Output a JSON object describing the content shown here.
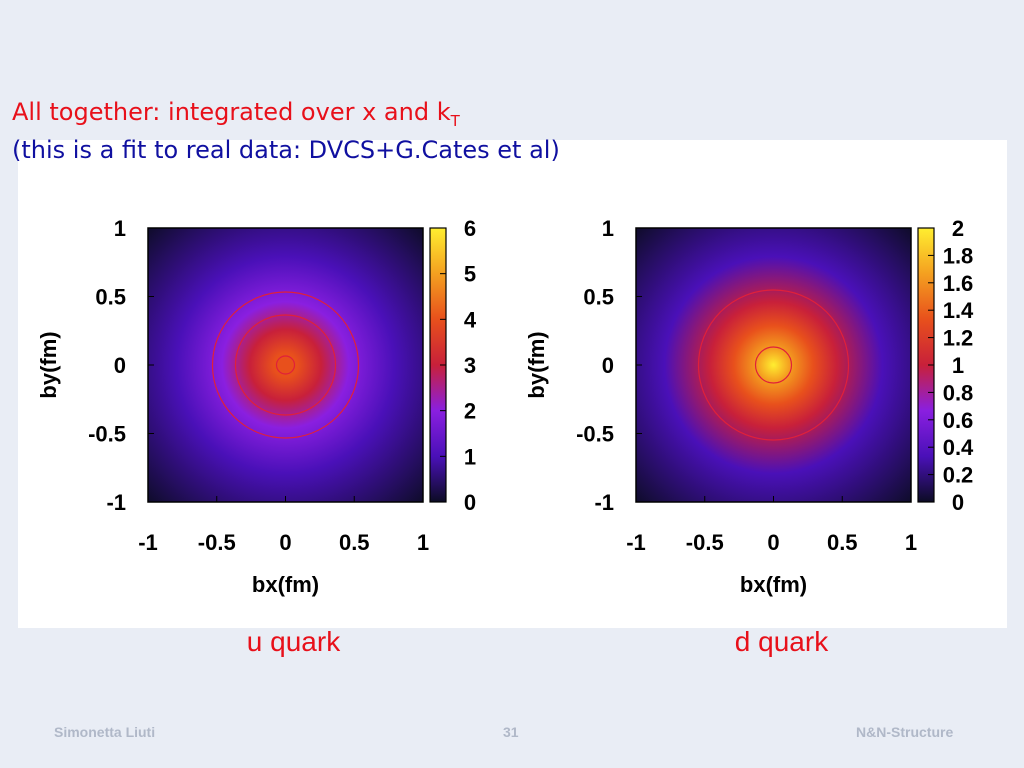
{
  "heading": {
    "line1": "All together: integrated over x and k",
    "line1_subscript": "T",
    "line2": "(this is a fit to real data: DVCS+G.Cates et al)"
  },
  "chart_data": [
    {
      "type": "heatmap",
      "caption": "u quark",
      "xlabel": "bx(fm)",
      "ylabel": "by(fm)",
      "xlim": [
        -1,
        1
      ],
      "ylim": [
        -1,
        1
      ],
      "xticks": [
        -1,
        -0.5,
        0,
        0.5,
        1
      ],
      "yticks": [
        -1,
        -0.5,
        0,
        0.5,
        1
      ],
      "zlim": [
        0,
        6
      ],
      "zticks": [
        0,
        1,
        2,
        3,
        4,
        5,
        6
      ],
      "palette": [
        "#0c0c24",
        "#4a10b8",
        "#8a1fe0",
        "#c8203a",
        "#e8501c",
        "#f4a020",
        "#ffee30"
      ],
      "contour_color": "#e0203a"
    },
    {
      "type": "heatmap",
      "caption": "d quark",
      "xlabel": "bx(fm)",
      "ylabel": "by(fm)",
      "xlim": [
        -1,
        1
      ],
      "ylim": [
        -1,
        1
      ],
      "xticks": [
        -1,
        -0.5,
        0,
        0.5,
        1
      ],
      "yticks": [
        -1,
        -0.5,
        0,
        0.5,
        1
      ],
      "zlim": [
        0,
        2
      ],
      "zticks": [
        0,
        0.2,
        0.4,
        0.6,
        0.8,
        1,
        1.2,
        1.4,
        1.6,
        1.8,
        2
      ],
      "palette": [
        "#0c0c24",
        "#4a10b8",
        "#8a1fe0",
        "#c8203a",
        "#e8501c",
        "#f4a020",
        "#ffee30"
      ],
      "contour_color": "#e0203a"
    }
  ],
  "footer": {
    "left": "Simonetta Liuti",
    "center": "31",
    "right": "N&N-Structure"
  }
}
